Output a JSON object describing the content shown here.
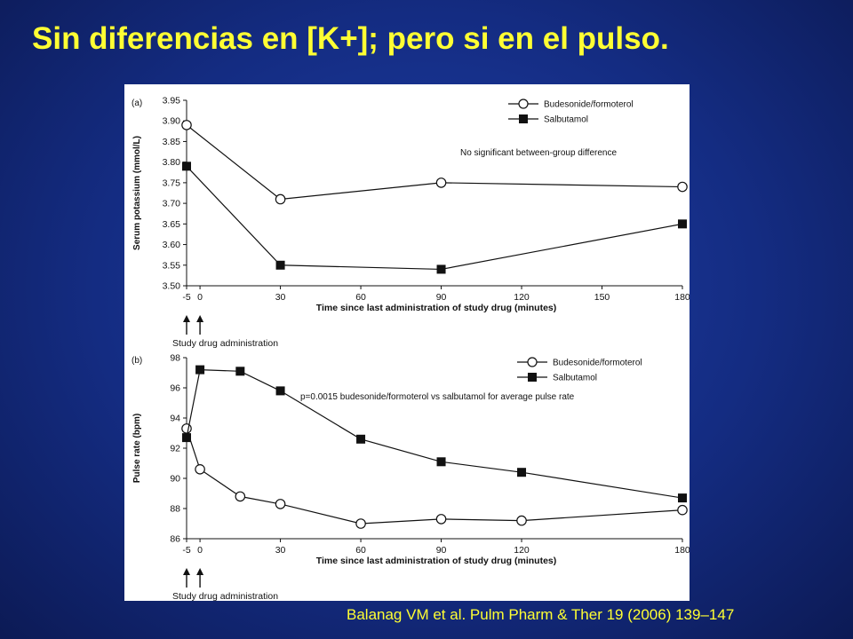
{
  "slide": {
    "title": "Sin diferencias en [K+]; pero si en el pulso.",
    "citation": "Balanag VM et al. Pulm Pharm & Ther 19 (2006) 139–147"
  },
  "colors": {
    "background": "#142c82",
    "title": "#ffff33",
    "panel": "#ffffff",
    "ink": "#111111"
  },
  "chart_data": [
    {
      "type": "line",
      "panel_label": "(a)",
      "xlabel": "Time since last administration of study drug (minutes)",
      "ylabel": "Serum potassium (mmol/L)",
      "xticks": [
        -5,
        0,
        30,
        60,
        90,
        120,
        150,
        180
      ],
      "yticks": [
        "3.50",
        "3.55",
        "3.60",
        "3.65",
        "3.70",
        "3.75",
        "3.80",
        "3.85",
        "3.90",
        "3.95"
      ],
      "xlim": [
        -5,
        180
      ],
      "ylim": [
        3.5,
        3.95
      ],
      "legend_position": "top-right",
      "annotation": "No significant between-group difference",
      "arrow_label": "Study drug administration",
      "arrows_at": [
        -5,
        0
      ],
      "series": [
        {
          "name": "Budesonide/formoterol",
          "marker": "open-circle",
          "x": [
            -5,
            30,
            90,
            180
          ],
          "y": [
            3.89,
            3.71,
            3.75,
            3.74
          ]
        },
        {
          "name": "Salbutamol",
          "marker": "filled-square",
          "x": [
            -5,
            30,
            90,
            180
          ],
          "y": [
            3.79,
            3.55,
            3.54,
            3.65
          ]
        }
      ]
    },
    {
      "type": "line",
      "panel_label": "(b)",
      "xlabel": "Time since last administration of study drug (minutes)",
      "ylabel": "Pulse rate (bpm)",
      "xticks": [
        -5,
        0,
        30,
        60,
        90,
        120,
        180
      ],
      "yticks": [
        "86",
        "88",
        "90",
        "92",
        "94",
        "96",
        "98"
      ],
      "xlim": [
        -5,
        180
      ],
      "ylim": [
        86,
        98
      ],
      "legend_position": "top-right",
      "annotation": "p=0.0015 budesonide/formoterol vs salbutamol for average pulse rate",
      "arrow_label": "Study drug administration",
      "arrows_at": [
        -5,
        0
      ],
      "series": [
        {
          "name": "Budesonide/formoterol",
          "marker": "open-circle",
          "x": [
            -5,
            0,
            15,
            30,
            60,
            90,
            120,
            180
          ],
          "y": [
            93.3,
            90.6,
            88.8,
            88.3,
            87.0,
            87.3,
            87.2,
            87.9
          ]
        },
        {
          "name": "Salbutamol",
          "marker": "filled-square",
          "x": [
            -5,
            0,
            15,
            30,
            60,
            90,
            120,
            180
          ],
          "y": [
            92.7,
            97.2,
            97.1,
            95.8,
            92.6,
            91.1,
            90.4,
            88.7
          ]
        }
      ]
    }
  ]
}
